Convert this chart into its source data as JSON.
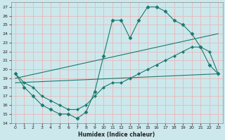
{
  "xlabel": "Humidex (Indice chaleur)",
  "bg_color": "#cce8ec",
  "grid_color": "#e8b8b8",
  "line_color": "#1a7a6e",
  "xlim": [
    -0.5,
    23.5
  ],
  "ylim": [
    14,
    27.5
  ],
  "yticks": [
    14,
    15,
    16,
    17,
    18,
    19,
    20,
    21,
    22,
    23,
    24,
    25,
    26,
    27
  ],
  "xticks": [
    0,
    1,
    2,
    3,
    4,
    5,
    6,
    7,
    8,
    9,
    10,
    11,
    12,
    13,
    14,
    15,
    16,
    17,
    18,
    19,
    20,
    21,
    22,
    23
  ],
  "line1_x": [
    0,
    1,
    2,
    3,
    4,
    5,
    6,
    7,
    8,
    9,
    10,
    11,
    12,
    13,
    14,
    15,
    16,
    17,
    18,
    19,
    20,
    21,
    22,
    23
  ],
  "line1_y": [
    19.5,
    18.0,
    17.0,
    16.0,
    15.5,
    15.0,
    15.0,
    14.5,
    15.2,
    17.5,
    21.5,
    25.5,
    25.5,
    23.5,
    25.5,
    27.0,
    27.0,
    26.5,
    25.5,
    25.0,
    24.0,
    22.5,
    20.5,
    19.5
  ],
  "line2_x": [
    0,
    23
  ],
  "line2_y": [
    19.0,
    24.0
  ],
  "line3_x": [
    0,
    23
  ],
  "line3_y": [
    18.5,
    19.5
  ],
  "line4_x": [
    0,
    1,
    2,
    3,
    4,
    5,
    6,
    7,
    8,
    9,
    10,
    11,
    12,
    13,
    14,
    15,
    16,
    17,
    18,
    19,
    20,
    21,
    22,
    23
  ],
  "line4_y": [
    19.5,
    18.5,
    18.0,
    17.0,
    16.5,
    16.0,
    15.5,
    15.5,
    16.0,
    17.0,
    18.0,
    18.5,
    18.5,
    19.0,
    19.5,
    20.0,
    20.5,
    21.0,
    21.5,
    22.0,
    22.5,
    22.5,
    22.0,
    19.5
  ]
}
